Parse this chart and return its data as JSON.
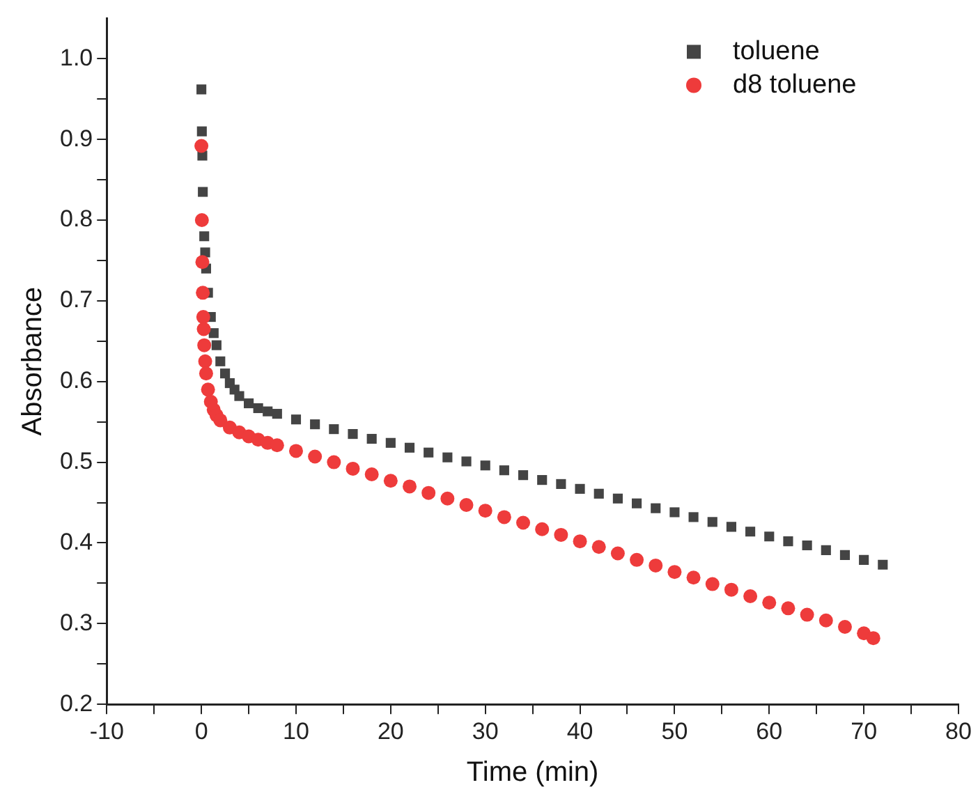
{
  "chart_data": {
    "type": "scatter",
    "xlabel": "Time (min)",
    "ylabel": "Absorbance",
    "xlim": [
      -10,
      80
    ],
    "ylim": [
      0.2,
      1.05
    ],
    "xticks": [
      -10,
      {
        "value": -5,
        "label": null
      },
      0,
      {
        "value": 5,
        "label": null
      },
      10,
      {
        "value": 15,
        "label": null
      },
      20,
      {
        "value": 25,
        "label": null
      },
      30,
      {
        "value": 35,
        "label": null
      },
      40,
      {
        "value": 45,
        "label": null
      },
      50,
      {
        "value": 55,
        "label": null
      },
      60,
      {
        "value": 65,
        "label": null
      },
      70,
      {
        "value": 75,
        "label": null
      },
      80
    ],
    "yticks": [
      0.2,
      {
        "value": 0.25,
        "label": null
      },
      0.3,
      {
        "value": 0.35,
        "label": null
      },
      0.4,
      {
        "value": 0.45,
        "label": null
      },
      0.5,
      {
        "value": 0.55,
        "label": null
      },
      0.6,
      {
        "value": 0.65,
        "label": null
      },
      0.7,
      {
        "value": 0.75,
        "label": null
      },
      0.8,
      {
        "value": 0.85,
        "label": null
      },
      0.9,
      {
        "value": 0.95,
        "label": null
      },
      {
        "value": 1,
        "label": "1.0"
      }
    ],
    "grid": false,
    "legend": "top right",
    "series": [
      {
        "name": "toluene",
        "color": "#444444",
        "marker": "square",
        "x": [
          0,
          0.05,
          0.1,
          0.15,
          0.3,
          0.4,
          0.5,
          0.7,
          1,
          1.3,
          1.6,
          2,
          2.5,
          3,
          3.5,
          4,
          5,
          6,
          7,
          8,
          10,
          12,
          14,
          16,
          18,
          20,
          22,
          24,
          26,
          28,
          30,
          32,
          34,
          36,
          38,
          40,
          42,
          44,
          46,
          48,
          50,
          52,
          54,
          56,
          58,
          60,
          62,
          64,
          66,
          68,
          70,
          72
        ],
        "values": [
          0.962,
          0.91,
          0.88,
          0.835,
          0.78,
          0.76,
          0.74,
          0.71,
          0.68,
          0.66,
          0.645,
          0.625,
          0.61,
          0.598,
          0.59,
          0.582,
          0.573,
          0.567,
          0.563,
          0.56,
          0.553,
          0.547,
          0.541,
          0.535,
          0.529,
          0.524,
          0.518,
          0.512,
          0.506,
          0.501,
          0.496,
          0.49,
          0.484,
          0.478,
          0.473,
          0.467,
          0.461,
          0.455,
          0.449,
          0.443,
          0.438,
          0.432,
          0.426,
          0.42,
          0.414,
          0.408,
          0.402,
          0.397,
          0.391,
          0.385,
          0.379,
          0.373
        ]
      },
      {
        "name": "d8 toluene",
        "color": "#ee3b3b",
        "marker": "circle",
        "x": [
          0,
          0.05,
          0.1,
          0.15,
          0.2,
          0.25,
          0.3,
          0.4,
          0.5,
          0.7,
          1,
          1.3,
          1.6,
          2,
          3,
          4,
          5,
          6,
          7,
          8,
          10,
          12,
          14,
          16,
          18,
          20,
          22,
          24,
          26,
          28,
          30,
          32,
          34,
          36,
          38,
          40,
          42,
          44,
          46,
          48,
          50,
          52,
          54,
          56,
          58,
          60,
          62,
          64,
          66,
          68,
          70,
          71
        ],
        "values": [
          0.892,
          0.8,
          0.748,
          0.71,
          0.68,
          0.665,
          0.645,
          0.625,
          0.61,
          0.59,
          0.575,
          0.565,
          0.558,
          0.552,
          0.543,
          0.537,
          0.532,
          0.528,
          0.524,
          0.521,
          0.514,
          0.507,
          0.5,
          0.492,
          0.485,
          0.477,
          0.47,
          0.462,
          0.455,
          0.447,
          0.44,
          0.432,
          0.425,
          0.417,
          0.41,
          0.402,
          0.395,
          0.387,
          0.379,
          0.372,
          0.364,
          0.357,
          0.349,
          0.342,
          0.334,
          0.326,
          0.319,
          0.311,
          0.304,
          0.296,
          0.288,
          0.282
        ]
      }
    ]
  }
}
